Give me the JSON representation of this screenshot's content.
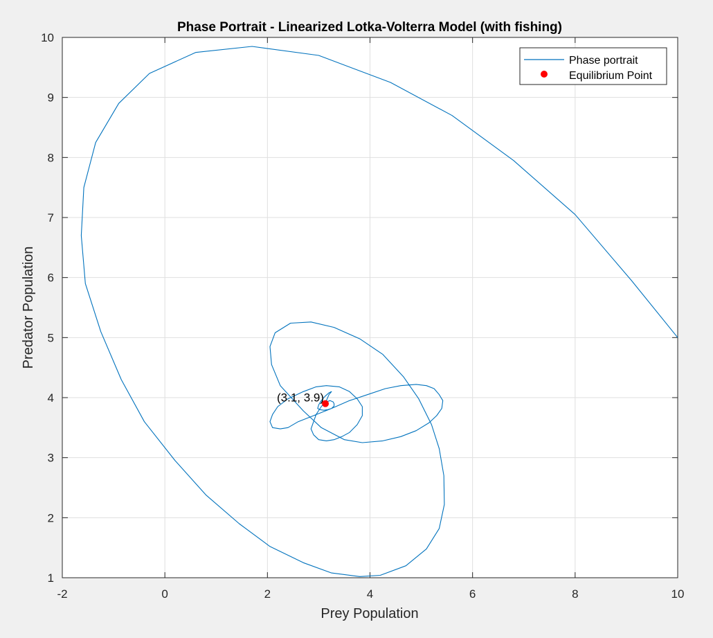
{
  "chart_data": {
    "type": "line",
    "title": "Phase Portrait - Linearized Lotka-Volterra Model (with fishing)",
    "xlabel": "Prey Population",
    "ylabel": "Predator Population",
    "xlim": [
      -2,
      10
    ],
    "ylim": [
      1,
      10
    ],
    "xticks": [
      -2,
      0,
      2,
      4,
      6,
      8,
      10
    ],
    "yticks": [
      1,
      2,
      3,
      4,
      5,
      6,
      7,
      8,
      9,
      10
    ],
    "xtick_labels": [
      "-2",
      "0",
      "2",
      "4",
      "6",
      "8",
      "10"
    ],
    "ytick_labels": [
      "1",
      "2",
      "3",
      "4",
      "5",
      "6",
      "7",
      "8",
      "9",
      "10"
    ],
    "grid": true,
    "legend_position": "top-right",
    "colors": {
      "line": "#0072bd",
      "equilibrium": "#ff0000"
    },
    "series": [
      {
        "name": "Phase portrait",
        "type": "line",
        "x": [
          10,
          9.1,
          8.0,
          6.8,
          5.6,
          4.4,
          3.0,
          1.7,
          0.6,
          -0.3,
          -0.9,
          -1.35,
          -1.58,
          -1.63,
          -1.55,
          -1.25,
          -0.85,
          -0.4,
          0.2,
          0.8,
          1.45,
          2.05,
          2.7,
          3.25,
          3.8,
          4.2,
          4.7,
          5.1,
          5.35,
          5.45,
          5.44,
          5.35,
          5.2,
          4.95,
          4.65,
          4.25,
          3.8,
          3.3,
          2.85,
          2.45,
          2.15,
          2.05,
          2.08,
          2.25,
          2.7,
          3.05,
          3.5,
          3.85,
          4.25,
          4.6,
          4.9,
          5.15,
          5.3,
          5.4,
          5.42,
          5.35,
          5.25,
          5.1,
          4.9,
          4.6,
          4.3,
          3.95,
          3.6,
          3.25,
          2.9,
          2.6,
          2.4,
          2.25,
          2.1,
          2.05,
          2.1,
          2.2,
          2.4,
          2.7,
          2.95,
          3.15,
          3.4,
          3.6,
          3.75,
          3.85,
          3.85,
          3.75,
          3.6,
          3.45,
          3.3,
          3.15,
          3.0,
          2.9,
          2.85,
          2.9,
          2.95,
          3.05,
          3.15,
          3.2,
          3.25,
          3.2,
          3.12,
          3.05,
          3.0,
          2.98,
          3.02,
          3.1,
          3.18,
          3.25,
          3.3,
          3.3,
          3.28,
          3.22,
          3.15,
          3.12
        ],
        "y": [
          5.0,
          5.95,
          7.05,
          7.95,
          8.7,
          9.25,
          9.7,
          9.85,
          9.75,
          9.4,
          8.9,
          8.25,
          7.5,
          6.7,
          5.9,
          5.1,
          4.3,
          3.6,
          2.95,
          2.38,
          1.9,
          1.52,
          1.25,
          1.08,
          1.02,
          1.04,
          1.2,
          1.48,
          1.82,
          2.22,
          2.7,
          3.15,
          3.55,
          3.98,
          4.35,
          4.72,
          4.98,
          5.17,
          5.26,
          5.24,
          5.08,
          4.85,
          4.55,
          4.2,
          3.78,
          3.5,
          3.3,
          3.25,
          3.28,
          3.35,
          3.45,
          3.58,
          3.7,
          3.82,
          3.95,
          4.05,
          4.15,
          4.2,
          4.22,
          4.2,
          4.15,
          4.05,
          3.95,
          3.82,
          3.7,
          3.6,
          3.5,
          3.48,
          3.5,
          3.6,
          3.72,
          3.85,
          3.98,
          4.1,
          4.18,
          4.2,
          4.18,
          4.1,
          3.98,
          3.85,
          3.7,
          3.55,
          3.42,
          3.35,
          3.3,
          3.28,
          3.3,
          3.38,
          3.48,
          3.6,
          3.72,
          3.85,
          3.95,
          4.05,
          4.1,
          4.08,
          4.02,
          3.95,
          3.88,
          3.82,
          3.8,
          3.79,
          3.8,
          3.82,
          3.86,
          3.9,
          3.93,
          3.95,
          3.93,
          3.9
        ]
      },
      {
        "name": "Equilibrium Point",
        "type": "scatter",
        "x": [
          3.13
        ],
        "y": [
          3.9
        ]
      }
    ],
    "annotations": [
      {
        "text": "(3.1, 3.9)",
        "x": 3.13,
        "y": 3.9
      }
    ]
  }
}
